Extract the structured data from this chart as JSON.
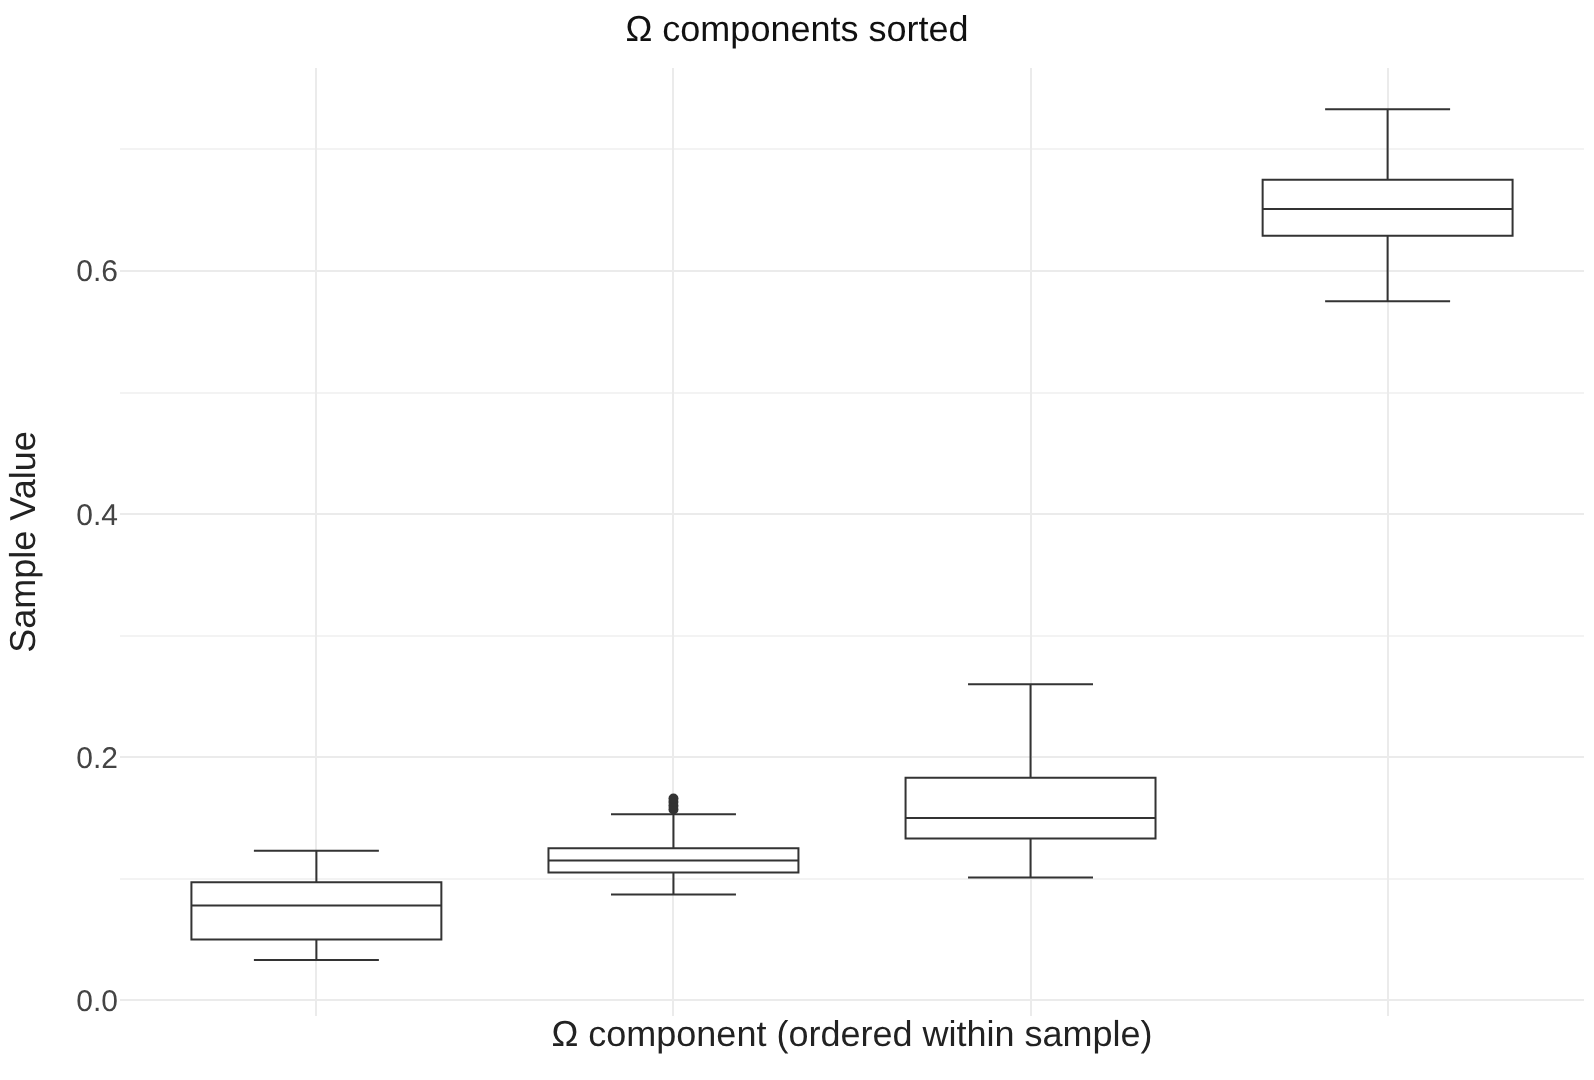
{
  "chart_data": {
    "type": "box",
    "title": "Ω components sorted",
    "xlabel": "Ω component (ordered within sample)",
    "ylabel": "Sample Value",
    "categories": [
      null,
      null,
      null,
      null
    ],
    "boxes": [
      {
        "low": 0.033,
        "q1": 0.05,
        "median": 0.078,
        "q3": 0.097,
        "high": 0.123
      },
      {
        "low": 0.087,
        "q1": 0.105,
        "median": 0.115,
        "q3": 0.125,
        "high": 0.153,
        "outliers": [
          0.157,
          0.16,
          0.163,
          0.166
        ]
      },
      {
        "low": 0.101,
        "q1": 0.133,
        "median": 0.15,
        "q3": 0.183,
        "high": 0.26
      },
      {
        "low": 0.575,
        "q1": 0.629,
        "median": 0.651,
        "q3": 0.675,
        "high": 0.733
      }
    ],
    "color": "#333333",
    "ylim": [
      -0.013,
      0.767
    ],
    "yticks": [
      {
        "value": 0,
        "label": "0.0"
      },
      0.2,
      0.4,
      0.6
    ],
    "grid": true
  }
}
